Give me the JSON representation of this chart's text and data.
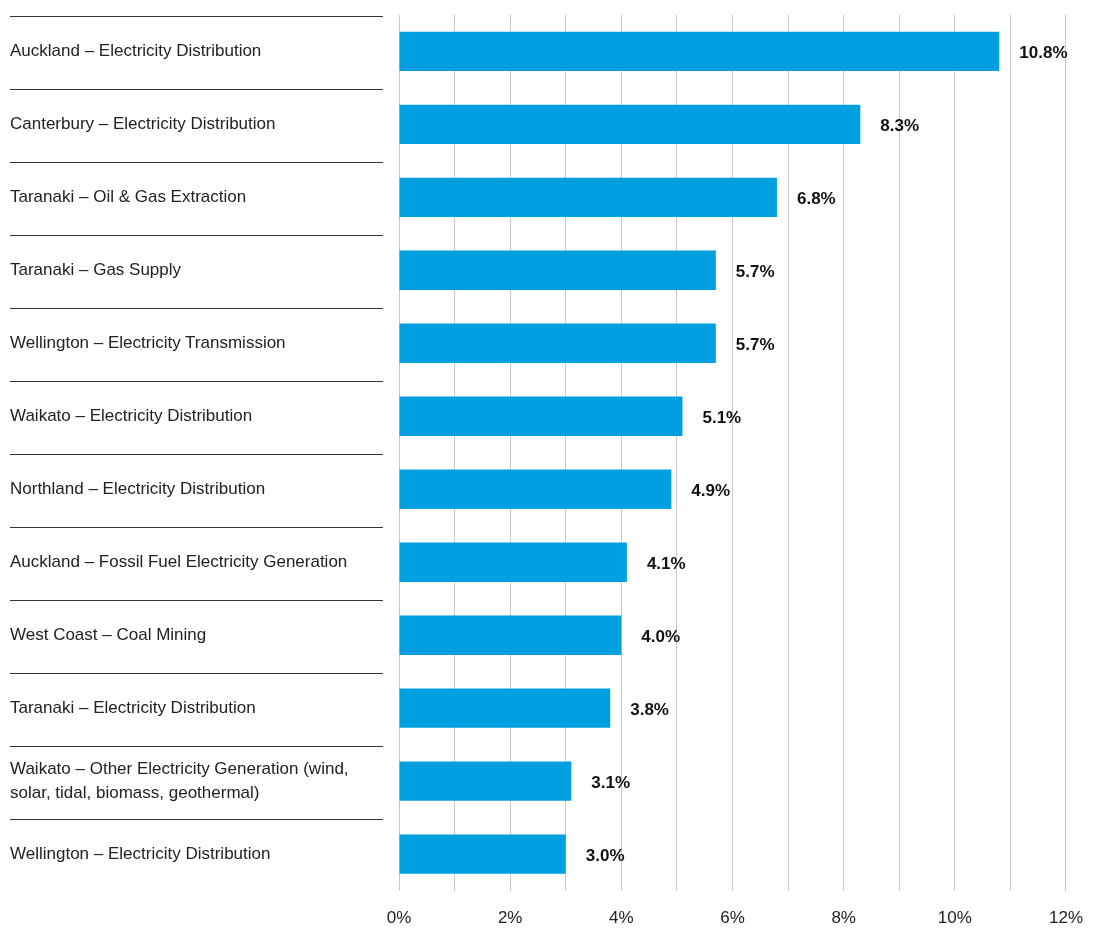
{
  "chart_data": {
    "type": "bar",
    "orientation": "horizontal",
    "categories": [
      "Auckland – Electricity Distribution",
      "Canterbury – Electricity Distribution",
      "Taranaki – Oil & Gas Extraction",
      "Taranaki – Gas Supply",
      "Wellington – Electricity Transmission",
      "Waikato – Electricity Distribution",
      "Northland – Electricity Distribution",
      "Auckland – Fossil Fuel Electricity Generation",
      "West Coast – Coal Mining",
      "Taranaki – Electricity Distribution",
      "Waikato – Other Electricity Generation (wind, solar, tidal, biomass, geothermal)",
      "Wellington – Electricity Distribution"
    ],
    "values": [
      10.8,
      8.3,
      6.8,
      5.7,
      5.7,
      5.1,
      4.9,
      4.1,
      4.0,
      3.8,
      3.1,
      3.0
    ],
    "value_labels": [
      "10.8%",
      "8.3%",
      "6.8%",
      "5.7%",
      "5.7%",
      "5.1%",
      "4.9%",
      "4.1%",
      "4.0%",
      "3.8%",
      "3.1%",
      "3.0%"
    ],
    "color": "#009fdf",
    "xlim": [
      0,
      12
    ],
    "xticks": [
      {
        "value": 0,
        "label": "0%"
      },
      {
        "value": 1,
        "label": null
      },
      {
        "value": 2,
        "label": "2%"
      },
      {
        "value": 3,
        "label": null
      },
      {
        "value": 4,
        "label": "4%"
      },
      {
        "value": 5,
        "label": null
      },
      {
        "value": 6,
        "label": "6%"
      },
      {
        "value": 7,
        "label": null
      },
      {
        "value": 8,
        "label": "8%"
      },
      {
        "value": 9,
        "label": null
      },
      {
        "value": 10,
        "label": "10%"
      },
      {
        "value": 11,
        "label": null
      },
      {
        "value": 12,
        "label": "12%"
      }
    ],
    "grid": "x",
    "legend": false
  }
}
